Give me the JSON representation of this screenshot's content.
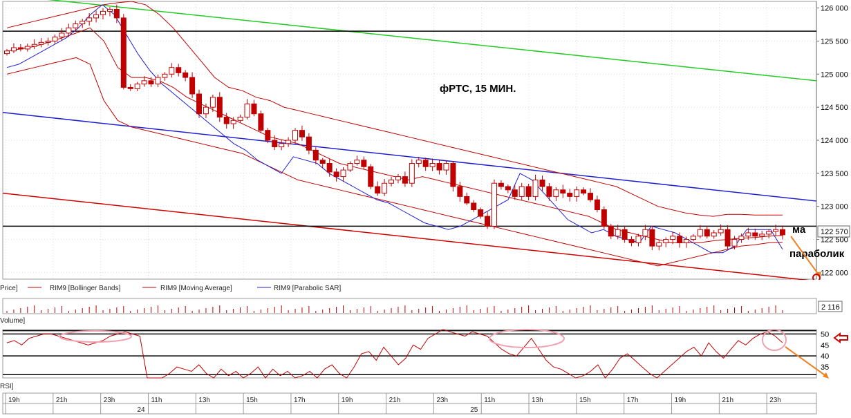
{
  "chart_data": {
    "type": "candlestick",
    "title": "фРТС,  15 МИН.",
    "annotations": {
      "ma": "ма",
      "parabolic": "параболик"
    },
    "price_axis": {
      "ticks": [
        122000,
        122500,
        123000,
        123500,
        124000,
        124500,
        125000,
        125500,
        126000
      ],
      "tick_labels": [
        "122 000",
        "122 500",
        "123 000",
        "123 500",
        "124 000",
        "124 500",
        "125 000",
        "125 500",
        "126 000"
      ],
      "range": [
        121900,
        126100
      ],
      "last_price_label": "122 570",
      "last_price": 122570
    },
    "legend": {
      "price_label": "Price]",
      "items": [
        {
          "label": "RIM9 [Bollinger Bands]",
          "color": "#c00000"
        },
        {
          "label": "RIM9 [Moving Average]",
          "color": "#c00000"
        },
        {
          "label": "RIM9 [Parabolic SAR]",
          "color": "#1f1fd0"
        }
      ]
    },
    "volume": {
      "label": "Volume]",
      "last_label": "2 116"
    },
    "rsi": {
      "label": "RSI]",
      "ticks": [
        35,
        40,
        45,
        50
      ],
      "tick_labels": [
        "35",
        "40",
        "45",
        "50"
      ],
      "range": [
        30,
        52
      ]
    },
    "time_axis": {
      "hours": [
        "19h",
        "21h",
        "23h",
        "11h",
        "13h",
        "15h",
        "17h",
        "19h",
        "21h",
        "23h",
        "11h",
        "13h",
        "15h",
        "17h",
        "19h",
        "21h",
        "23h"
      ],
      "dates": [
        "24",
        "25"
      ]
    },
    "close": [
      125350,
      125400,
      125380,
      125420,
      125450,
      125480,
      125500,
      125560,
      125620,
      125700,
      125760,
      125800,
      125850,
      125900,
      125950,
      125980,
      125850,
      124800,
      124780,
      124850,
      124900,
      124850,
      124950,
      125000,
      125100,
      125020,
      124950,
      124700,
      124400,
      124500,
      124650,
      124350,
      124250,
      124300,
      124350,
      124550,
      124400,
      124150,
      124000,
      123900,
      123950,
      124000,
      124150,
      124050,
      123850,
      123700,
      123650,
      123520,
      123450,
      123550,
      123650,
      123700,
      123600,
      123300,
      123200,
      123350,
      123400,
      123450,
      123350,
      123650,
      123700,
      123600,
      123650,
      123550,
      123650,
      123300,
      123150,
      123050,
      122950,
      122850,
      122700,
      123350,
      123300,
      123250,
      123150,
      123300,
      123150,
      123400,
      123300,
      123150,
      123250,
      123200,
      123150,
      123250,
      123200,
      123100,
      122950,
      122700,
      122550,
      122650,
      122500,
      122450,
      122550,
      122650,
      122400,
      122450,
      122500,
      122550,
      122450,
      122500,
      122550,
      122650,
      122550,
      122600,
      122650,
      122400,
      122500,
      122550,
      122600,
      122550,
      122580,
      122620,
      122650,
      122570
    ],
    "bollinger_upper": [
      125700,
      125750,
      125800,
      125850,
      125900,
      125950,
      126000,
      126050,
      126080,
      126100,
      126050,
      125900,
      125700,
      125450,
      125200,
      124950,
      124800,
      124750,
      124650,
      124600,
      124500,
      124450,
      124400,
      124350,
      124300,
      124250,
      124200,
      124150,
      124100,
      124050,
      124000,
      123950,
      123900,
      123850,
      123800,
      123750,
      123700,
      123650,
      123600,
      123550,
      123500,
      123450,
      123400,
      123350,
      123300,
      123200,
      123100,
      123000,
      122950,
      122900,
      122870,
      122850,
      122880,
      122880,
      122870,
      122870,
      122870
    ],
    "bollinger_lower": [
      125000,
      125050,
      125100,
      125150,
      125200,
      125250,
      125150,
      124600,
      124300,
      124200,
      124150,
      124100,
      124050,
      124000,
      123950,
      123900,
      123850,
      123800,
      123700,
      123600,
      123500,
      123400,
      123350,
      123300,
      123250,
      123200,
      123150,
      123100,
      123050,
      123000,
      122950,
      122900,
      122850,
      122800,
      122750,
      122700,
      122650,
      122600,
      122550,
      122500,
      122450,
      122400,
      122350,
      122300,
      122250,
      122200,
      122150,
      122100,
      122150,
      122200,
      122250,
      122300,
      122350,
      122400,
      122420,
      122450,
      122460
    ],
    "moving_average": [
      125350,
      125380,
      125420,
      125480,
      125550,
      125620,
      125700,
      125500,
      125100,
      124950,
      124950,
      124900,
      124800,
      124650,
      124550,
      124450,
      124350,
      124250,
      124150,
      124050,
      124000,
      123950,
      123850,
      123750,
      123650,
      123600,
      123550,
      123500,
      123450,
      123400,
      123450,
      123400,
      123350,
      123300,
      123250,
      123200,
      123150,
      123100,
      123050,
      123000,
      122950,
      122900,
      122850,
      122750,
      122650,
      122600,
      122550,
      122500,
      122450,
      122450,
      122450,
      122480,
      122500,
      122520,
      122530,
      122550,
      122560
    ],
    "parabolic_sar": [
      125100,
      125150,
      125250,
      125350,
      125450,
      125550,
      125700,
      125900,
      126050,
      125900,
      125600,
      125300,
      125050,
      124850,
      124700,
      124550,
      124400,
      124250,
      124100,
      123950,
      123850,
      123700,
      123600,
      123500,
      123750,
      123700,
      123650,
      123500,
      123400,
      123300,
      123200,
      123100,
      123050,
      122950,
      122850,
      122750,
      122700,
      122650,
      122700,
      122800,
      122900,
      123000,
      123100,
      123500,
      123400,
      123200,
      123000,
      122800,
      122700,
      122600,
      122650,
      122550,
      122500,
      122450,
      122700,
      122650,
      122600,
      122500,
      122400,
      122300,
      122300,
      122400,
      122650,
      122650,
      122650,
      122350
    ],
    "trendlines": [
      {
        "color": "#22cc22",
        "from": 126200,
        "to": 124900
      },
      {
        "color": "#1f1fd0",
        "from": 124420,
        "to": 123080
      },
      {
        "color": "#d00000",
        "from": 123200,
        "to": 121870
      }
    ],
    "horizontal_lines": [
      125650,
      122700
    ],
    "rsi_values": [
      46,
      47,
      45,
      48,
      49,
      50,
      50,
      49,
      48,
      47,
      46,
      45,
      46,
      47,
      49,
      50,
      51,
      50,
      49,
      30,
      28,
      30,
      32,
      35,
      34,
      33,
      36,
      32,
      30,
      34,
      31,
      33,
      29,
      32,
      35,
      30,
      34,
      31,
      33,
      28,
      31,
      33,
      30,
      34,
      36,
      32,
      30,
      35,
      41,
      42,
      38,
      44,
      40,
      36,
      39,
      45,
      43,
      48,
      50,
      52,
      51,
      50,
      49,
      51,
      50,
      49,
      46,
      43,
      41,
      40,
      44,
      48,
      43,
      38,
      35,
      34,
      32,
      30,
      31,
      33,
      36,
      30,
      34,
      39,
      41,
      38,
      35,
      32,
      30,
      33,
      36,
      39,
      42,
      44,
      40,
      46,
      42,
      39,
      43,
      47,
      45,
      48,
      50,
      51,
      49,
      46
    ]
  }
}
